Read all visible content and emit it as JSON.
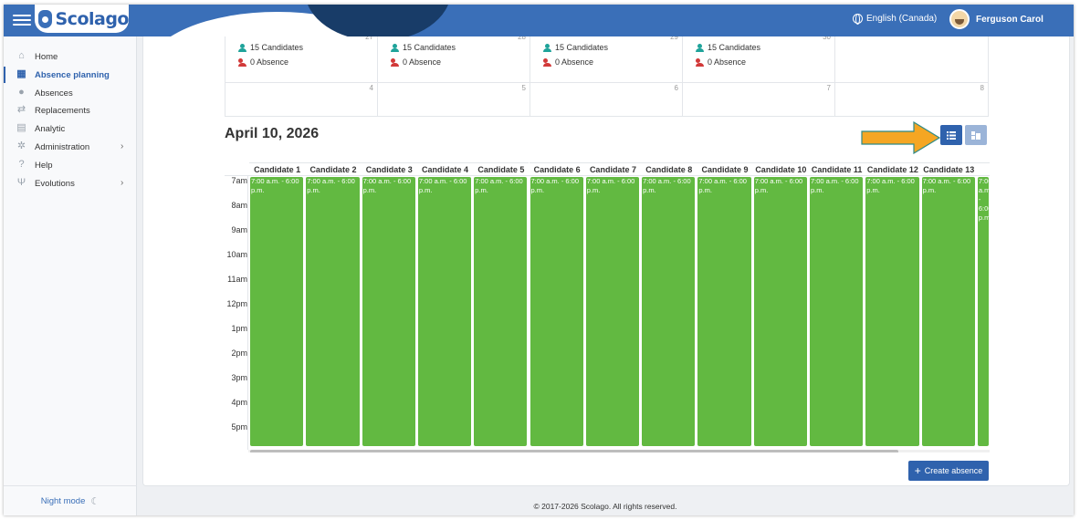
{
  "header": {
    "brand": "Scolago",
    "language": "English (Canada)",
    "user_name": "Ferguson Carol"
  },
  "sidebar": {
    "items": [
      {
        "label": "Home",
        "icon": "home-icon"
      },
      {
        "label": "Absence planning",
        "icon": "calendar-icon",
        "active": true
      },
      {
        "label": "Absences",
        "icon": "users-icon"
      },
      {
        "label": "Replacements",
        "icon": "replacements-icon"
      },
      {
        "label": "Analytic",
        "icon": "analytic-icon"
      },
      {
        "label": "Administration",
        "icon": "gear-icon",
        "chevron": true
      },
      {
        "label": "Help",
        "icon": "help-icon"
      },
      {
        "label": "Evolutions",
        "icon": "sprout-icon",
        "chevron": true
      }
    ],
    "night_mode": "Night mode"
  },
  "month": {
    "summary_row": {
      "days": [
        "27",
        "28",
        "29",
        "30",
        ""
      ],
      "candidates": [
        "15 Candidates",
        "15 Candidates",
        "15 Candidates",
        "15 Candidates",
        ""
      ],
      "absences": [
        "0 Absence",
        "0 Absence",
        "0 Absence",
        "0 Absence",
        ""
      ]
    },
    "next_row_days": [
      "4",
      "5",
      "6",
      "7",
      "8"
    ]
  },
  "day_view": {
    "title": "April 10, 2026",
    "hours": [
      "7am",
      "8am",
      "9am",
      "10am",
      "11am",
      "12pm",
      "1pm",
      "2pm",
      "3pm",
      "4pm",
      "5pm"
    ],
    "candidates": [
      "Candidate 1",
      "Candidate 2",
      "Candidate 3",
      "Candidate 4",
      "Candidate 5",
      "Candidate 6",
      "Candidate 7",
      "Candidate 8",
      "Candidate 9",
      "Candidate 10",
      "Candidate 11",
      "Candidate 12",
      "Candidate 13",
      "Ca"
    ],
    "event_text": "7:00 a.m. - 6:00 p.m.",
    "event_color": "#62b941"
  },
  "actions": {
    "create_absence": "Create absence"
  },
  "footer": "© 2017-2026 Scolago. All rights reserved.",
  "colors": {
    "primary": "#2f62ad",
    "header": "#3a6fb8",
    "highlight_arrow": "#f5a623"
  }
}
